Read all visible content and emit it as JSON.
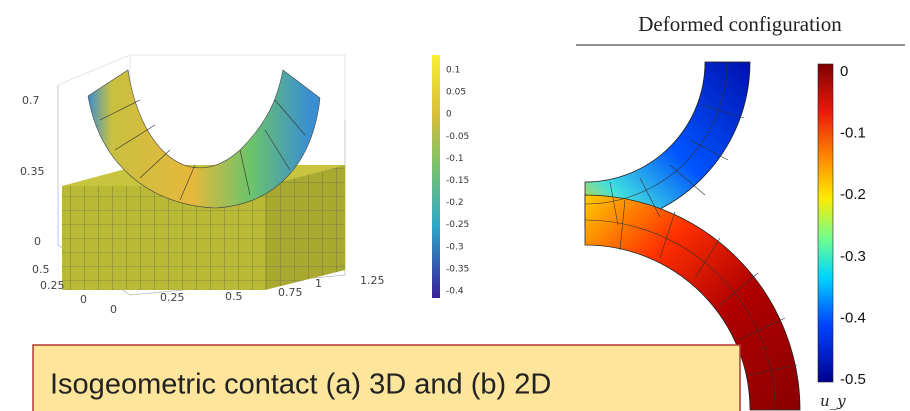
{
  "left_plot": {
    "z_ticks": [
      "0.7",
      "0.35",
      "0"
    ],
    "y_ticks": [
      "0.5",
      "0.25",
      "0"
    ],
    "x_ticks": [
      "0",
      "0.25",
      "0.5",
      "0.75",
      "1",
      "1.25"
    ],
    "colorbar_ticks": [
      "0.1",
      "0.05",
      "0",
      "-0.05",
      "-0.1",
      "-0.15",
      "-0.2",
      "-0.25",
      "-0.3",
      "-0.35",
      "-0.4"
    ]
  },
  "right_plot": {
    "title": "Deformed configuration",
    "colorbar_ticks": [
      "0",
      "-0.1",
      "-0.2",
      "-0.3",
      "-0.4",
      "-0.5"
    ],
    "colorbar_label": "u_y"
  },
  "caption": "Isogeometric contact (a) 3D and (b) 2D"
}
